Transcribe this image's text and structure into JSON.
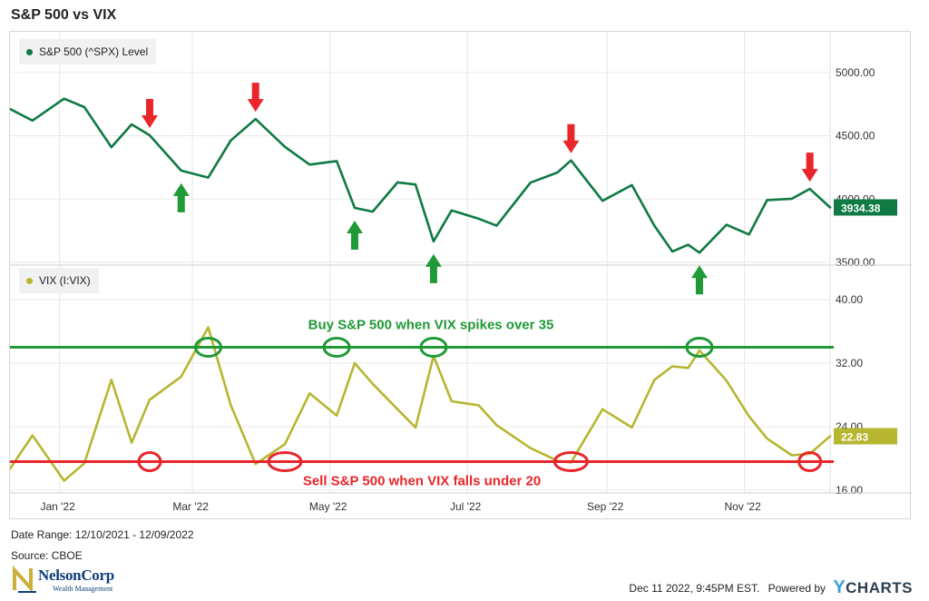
{
  "title": "S&P 500 vs VIX",
  "legend": {
    "spx": "S&P 500 (^SPX) Level",
    "vix": "VIX (I:VIX)"
  },
  "colors": {
    "spx": "#0f7a43",
    "vix": "#b7b631",
    "buy_line": "#1f9a36",
    "sell_line": "#e8262b",
    "arrow_red": "#e8262b",
    "arrow_green": "#1f9a36"
  },
  "footer": {
    "date_range": "Date Range: 12/10/2021 - 12/09/2022",
    "source": "Source: CBOE",
    "logo_name": "NelsonCorp",
    "logo_sub": "Wealth Management",
    "timestamp": "Dec 11 2022, 9:45PM EST.",
    "powered_by": "Powered by",
    "brand": "CHARTS",
    "brand_prefix": "Y"
  },
  "chart_data": [
    {
      "type": "line",
      "name": "S&P 500 (^SPX) Level",
      "ylim": [
        3500,
        5300
      ],
      "yticks": [
        "3500.00",
        "4000.00",
        "4500.00",
        "5000.00"
      ],
      "last_value_label": "3934.38",
      "x": [
        "2021-12-10",
        "2021-12-20",
        "2022-01-03",
        "2022-01-12",
        "2022-01-24",
        "2022-02-02",
        "2022-02-10",
        "2022-02-24",
        "2022-03-08",
        "2022-03-18",
        "2022-03-29",
        "2022-04-11",
        "2022-04-22",
        "2022-05-04",
        "2022-05-12",
        "2022-05-20",
        "2022-05-31",
        "2022-06-08",
        "2022-06-16",
        "2022-06-24",
        "2022-07-06",
        "2022-07-14",
        "2022-07-29",
        "2022-08-10",
        "2022-08-16",
        "2022-08-30",
        "2022-09-12",
        "2022-09-22",
        "2022-09-30",
        "2022-10-07",
        "2022-10-12",
        "2022-10-24",
        "2022-11-03",
        "2022-11-11",
        "2022-11-22",
        "2022-11-30",
        "2022-12-09"
      ],
      "values": [
        4712,
        4620,
        4793,
        4726,
        4410,
        4590,
        4504,
        4225,
        4170,
        4463,
        4632,
        4413,
        4272,
        4300,
        3930,
        3901,
        4132,
        4115,
        3666,
        3911,
        3845,
        3790,
        4130,
        4210,
        4305,
        3986,
        4110,
        3790,
        3585,
        3639,
        3577,
        3797,
        3720,
        3992,
        4003,
        4080,
        3934
      ]
    },
    {
      "type": "line",
      "name": "VIX (I:VIX)",
      "ylim": [
        16,
        44
      ],
      "yticks": [
        "16.00",
        "24.00",
        "32.00",
        "40.00"
      ],
      "last_value_label": "22.83",
      "x": [
        "2021-12-10",
        "2021-12-20",
        "2022-01-03",
        "2022-01-12",
        "2022-01-24",
        "2022-02-02",
        "2022-02-10",
        "2022-02-24",
        "2022-03-08",
        "2022-03-18",
        "2022-03-29",
        "2022-04-11",
        "2022-04-22",
        "2022-05-04",
        "2022-05-12",
        "2022-05-20",
        "2022-05-31",
        "2022-06-08",
        "2022-06-16",
        "2022-06-24",
        "2022-07-06",
        "2022-07-14",
        "2022-07-29",
        "2022-08-10",
        "2022-08-16",
        "2022-08-30",
        "2022-09-12",
        "2022-09-22",
        "2022-09-30",
        "2022-10-07",
        "2022-10-12",
        "2022-10-24",
        "2022-11-03",
        "2022-11-11",
        "2022-11-22",
        "2022-11-30",
        "2022-12-09"
      ],
      "values": [
        18.7,
        22.9,
        17.2,
        19.4,
        29.9,
        22.0,
        27.4,
        30.3,
        36.5,
        26.7,
        19.3,
        21.8,
        28.2,
        25.4,
        32.0,
        29.4,
        26.2,
        23.9,
        32.9,
        27.2,
        26.7,
        24.2,
        21.3,
        19.7,
        19.5,
        26.2,
        23.9,
        29.9,
        31.6,
        31.4,
        33.6,
        29.8,
        25.3,
        22.5,
        20.4,
        20.6,
        22.8
      ]
    }
  ],
  "annotations": {
    "buy_text": "Buy S&P 500 when VIX spikes over 35",
    "sell_text": "Sell S&P 500 when VIX falls under 20",
    "buy_level": 34,
    "sell_level": 19.6,
    "x_ticks": [
      "Jan '22",
      "Mar '22",
      "May '22",
      "Jul '22",
      "Sep '22",
      "Nov '22"
    ],
    "x_tick_dates": [
      "2022-01-01",
      "2022-03-01",
      "2022-05-01",
      "2022-07-01",
      "2022-09-01",
      "2022-11-01"
    ],
    "red_arrow_dates": [
      "2022-02-10",
      "2022-03-29",
      "2022-08-16",
      "2022-11-30"
    ],
    "green_arrow_dates": [
      "2022-02-24",
      "2022-05-12",
      "2022-06-16",
      "2022-10-12"
    ],
    "buy_circle_dates": [
      "2022-03-08",
      "2022-05-04",
      "2022-06-16",
      "2022-10-12"
    ],
    "sell_circle_dates": [
      "2022-02-10",
      "2022-04-11",
      "2022-08-16",
      "2022-11-30"
    ]
  }
}
